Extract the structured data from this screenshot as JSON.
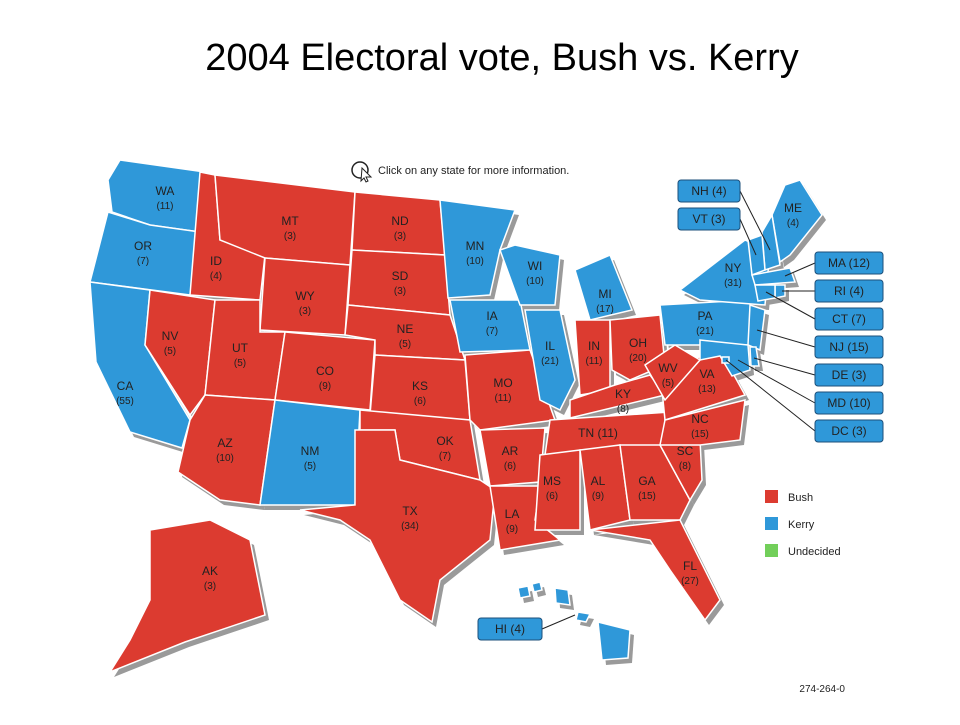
{
  "title": "2004 Electoral vote, Bush vs. Kerry",
  "instruction": "Click on any state for more information.",
  "footnote": "274-264-0",
  "legend": [
    {
      "label": "Bush",
      "color": "#dc3b30"
    },
    {
      "label": "Kerry",
      "color": "#2f98d9"
    },
    {
      "label": "Undecided",
      "color": "#72cf5a"
    }
  ],
  "states": [
    {
      "name": "WA",
      "votes": "(11)",
      "color": "#2f98d9"
    },
    {
      "name": "OR",
      "votes": "(7)",
      "color": "#2f98d9"
    },
    {
      "name": "CA",
      "votes": "(55)",
      "color": "#2f98d9"
    },
    {
      "name": "NV",
      "votes": "(5)",
      "color": "#dc3b30"
    },
    {
      "name": "ID",
      "votes": "(4)",
      "color": "#dc3b30"
    },
    {
      "name": "MT",
      "votes": "(3)",
      "color": "#dc3b30"
    },
    {
      "name": "WY",
      "votes": "(3)",
      "color": "#dc3b30"
    },
    {
      "name": "UT",
      "votes": "(5)",
      "color": "#dc3b30"
    },
    {
      "name": "AZ",
      "votes": "(10)",
      "color": "#dc3b30"
    },
    {
      "name": "CO",
      "votes": "(9)",
      "color": "#dc3b30"
    },
    {
      "name": "NM",
      "votes": "(5)",
      "color": "#2f98d9"
    },
    {
      "name": "ND",
      "votes": "(3)",
      "color": "#dc3b30"
    },
    {
      "name": "SD",
      "votes": "(3)",
      "color": "#dc3b30"
    },
    {
      "name": "NE",
      "votes": "(5)",
      "color": "#dc3b30"
    },
    {
      "name": "KS",
      "votes": "(6)",
      "color": "#dc3b30"
    },
    {
      "name": "OK",
      "votes": "(7)",
      "color": "#dc3b30"
    },
    {
      "name": "TX",
      "votes": "(34)",
      "color": "#dc3b30"
    },
    {
      "name": "MN",
      "votes": "(10)",
      "color": "#2f98d9"
    },
    {
      "name": "IA",
      "votes": "(7)",
      "color": "#2f98d9"
    },
    {
      "name": "MO",
      "votes": "(11)",
      "color": "#dc3b30"
    },
    {
      "name": "AR",
      "votes": "(6)",
      "color": "#dc3b30"
    },
    {
      "name": "LA",
      "votes": "(9)",
      "color": "#dc3b30"
    },
    {
      "name": "WI",
      "votes": "(10)",
      "color": "#2f98d9"
    },
    {
      "name": "IL",
      "votes": "(21)",
      "color": "#2f98d9"
    },
    {
      "name": "MI",
      "votes": "(17)",
      "color": "#2f98d9"
    },
    {
      "name": "IN",
      "votes": "(11)",
      "color": "#dc3b30"
    },
    {
      "name": "OH",
      "votes": "(20)",
      "color": "#dc3b30"
    },
    {
      "name": "KY",
      "votes": "(8)",
      "color": "#dc3b30"
    },
    {
      "label": "TN (11)",
      "color": "#dc3b30"
    },
    {
      "name": "MS",
      "votes": "(6)",
      "color": "#dc3b30"
    },
    {
      "name": "AL",
      "votes": "(9)",
      "color": "#dc3b30"
    },
    {
      "name": "GA",
      "votes": "(15)",
      "color": "#dc3b30"
    },
    {
      "name": "FL",
      "votes": "(27)",
      "color": "#dc3b30"
    },
    {
      "name": "SC",
      "votes": "(8)",
      "color": "#dc3b30"
    },
    {
      "name": "NC",
      "votes": "(15)",
      "color": "#dc3b30"
    },
    {
      "name": "VA",
      "votes": "(13)",
      "color": "#dc3b30"
    },
    {
      "name": "WV",
      "votes": "(5)",
      "color": "#dc3b30"
    },
    {
      "name": "PA",
      "votes": "(21)",
      "color": "#2f98d9"
    },
    {
      "name": "NY",
      "votes": "(31)",
      "color": "#2f98d9"
    },
    {
      "name": "ME",
      "votes": "(4)",
      "color": "#2f98d9"
    },
    {
      "label": "NH (4)",
      "color": "#2f98d9"
    },
    {
      "label": "VT (3)",
      "color": "#2f98d9"
    },
    {
      "label": "MA (12)",
      "color": "#2f98d9"
    },
    {
      "label": "RI (4)",
      "color": "#2f98d9"
    },
    {
      "label": "CT (7)",
      "color": "#2f98d9"
    },
    {
      "label": "NJ (15)",
      "color": "#2f98d9"
    },
    {
      "label": "DE (3)",
      "color": "#2f98d9"
    },
    {
      "label": "MD (10)",
      "color": "#2f98d9"
    },
    {
      "label": "DC (3)",
      "color": "#2f98d9"
    },
    {
      "name": "AK",
      "votes": "(3)",
      "color": "#dc3b30"
    },
    {
      "label": "HI (4)",
      "color": "#2f98d9"
    }
  ]
}
